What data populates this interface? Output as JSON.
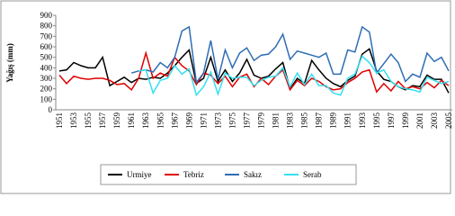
{
  "chart_data": {
    "type": "line",
    "y_label": "Yağış (mm)",
    "categories": [
      "1951",
      null,
      "1953",
      null,
      "1955",
      null,
      "1957",
      null,
      "1959",
      null,
      "1961",
      null,
      "1963",
      null,
      "1965",
      null,
      "1967",
      null,
      "1969",
      null,
      "1971",
      null,
      "1973",
      null,
      "1975",
      null,
      "1977",
      null,
      "1979",
      null,
      "1981",
      null,
      "1983",
      null,
      "1985",
      null,
      "1987",
      null,
      "1989",
      null,
      "1991",
      null,
      "1993",
      null,
      "1995",
      null,
      "1997",
      null,
      "1999",
      null,
      "2001",
      null,
      "2003",
      null,
      "2005"
    ],
    "series": [
      {
        "name": "Urmiye",
        "color": "#000000",
        "values": [
          370,
          380,
          450,
          420,
          400,
          400,
          500,
          230,
          270,
          310,
          260,
          300,
          290,
          310,
          300,
          350,
          420,
          500,
          570,
          250,
          300,
          500,
          270,
          380,
          270,
          350,
          480,
          330,
          300,
          320,
          390,
          450,
          200,
          300,
          250,
          470,
          380,
          300,
          250,
          220,
          280,
          320,
          530,
          580,
          370,
          290,
          270,
          220,
          190,
          230,
          220,
          330,
          290,
          290,
          160
        ]
      },
      {
        "name": "Tebriz",
        "color": "#e00000",
        "values": [
          330,
          250,
          320,
          300,
          290,
          300,
          300,
          280,
          240,
          250,
          190,
          300,
          540,
          300,
          350,
          320,
          500,
          420,
          370,
          240,
          350,
          330,
          250,
          320,
          220,
          310,
          340,
          220,
          300,
          240,
          320,
          380,
          190,
          280,
          230,
          300,
          270,
          220,
          190,
          200,
          260,
          300,
          360,
          380,
          170,
          250,
          180,
          270,
          200,
          220,
          200,
          260,
          210,
          280,
          230
        ]
      },
      {
        "name": "Sakız",
        "color": "#2e6db4",
        "values": [
          null,
          null,
          null,
          null,
          null,
          null,
          null,
          null,
          null,
          null,
          350,
          370,
          380,
          360,
          450,
          400,
          500,
          750,
          790,
          260,
          350,
          660,
          290,
          570,
          400,
          540,
          590,
          470,
          520,
          530,
          600,
          720,
          480,
          560,
          540,
          520,
          500,
          540,
          340,
          340,
          570,
          550,
          790,
          740,
          350,
          440,
          530,
          450,
          270,
          340,
          310,
          540,
          460,
          500,
          370
        ]
      },
      {
        "name": "Serab",
        "color": "#33e0f0",
        "values": [
          null,
          null,
          null,
          null,
          null,
          null,
          null,
          null,
          null,
          null,
          null,
          370,
          380,
          160,
          280,
          300,
          420,
          340,
          390,
          140,
          220,
          360,
          150,
          350,
          300,
          310,
          310,
          230,
          280,
          310,
          320,
          400,
          220,
          350,
          240,
          340,
          230,
          230,
          160,
          140,
          300,
          340,
          510,
          450,
          350,
          380,
          270,
          220,
          200,
          190,
          170,
          310,
          280,
          250,
          270
        ]
      }
    ],
    "ylim": [
      0,
      900
    ],
    "yticks": [
      0,
      100,
      200,
      300,
      400,
      500,
      600,
      700,
      800,
      900
    ],
    "grid": false,
    "legend": "bottom"
  }
}
